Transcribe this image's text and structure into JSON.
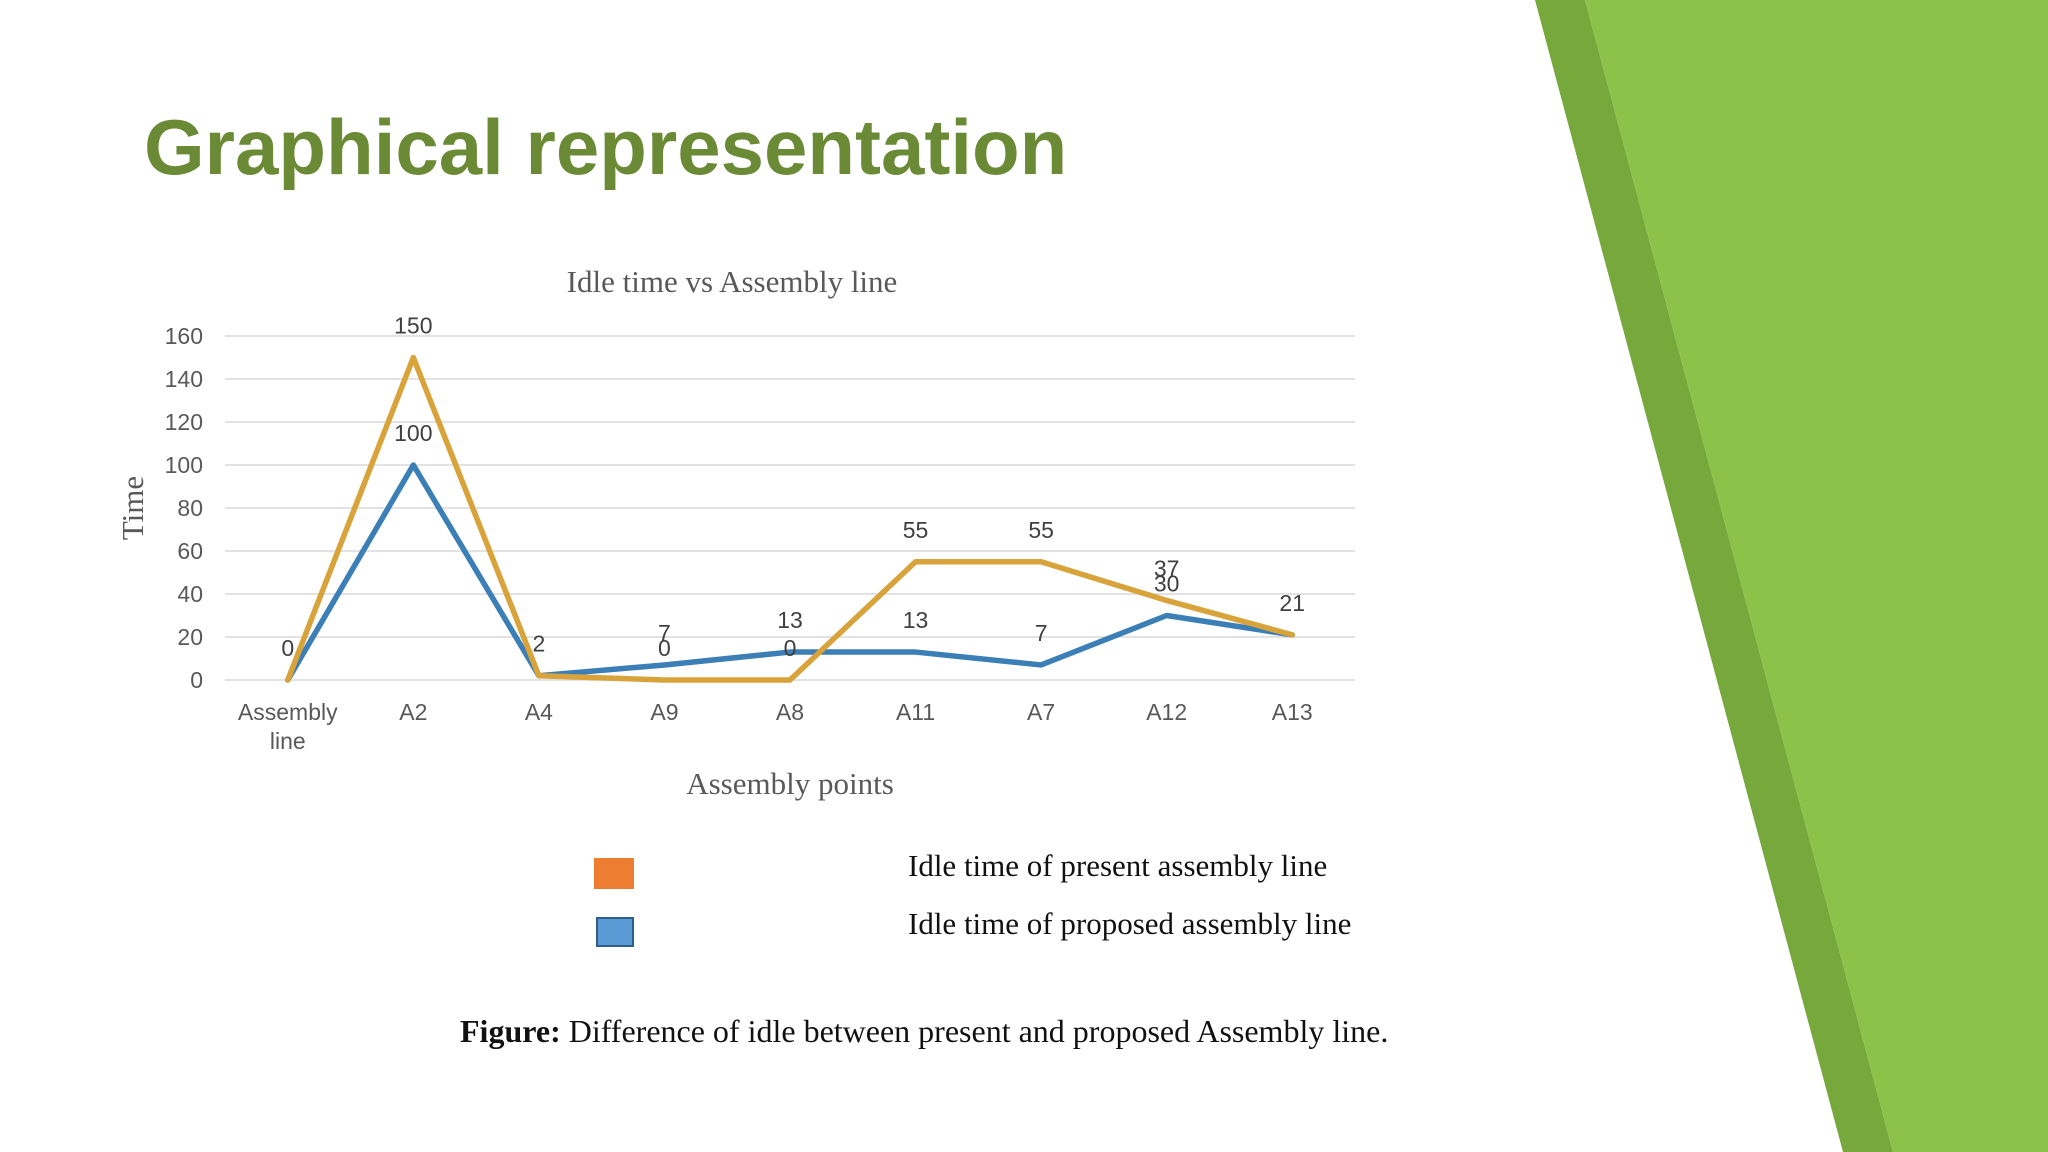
{
  "slide": {
    "title": "Graphical representation",
    "legend": [
      {
        "label": "Idle time of present assembly line",
        "color": "#ed7d31"
      },
      {
        "label": "Idle time of proposed assembly line",
        "color": "#5b9bd5"
      }
    ],
    "caption_bold": "Figure:",
    "caption_text": " Difference of idle between present and proposed Assembly line.",
    "accent_colors": {
      "title": "#6b8a35",
      "green_light": "#8bc34a",
      "green_dark": "#76a83c"
    }
  },
  "chart_data": {
    "type": "line",
    "title": "Idle time vs Assembly line",
    "xlabel": "Assembly points",
    "ylabel": "Time",
    "categories": [
      "Assembly line",
      "A2",
      "A4",
      "A9",
      "A8",
      "A11",
      "A7",
      "A12",
      "A13"
    ],
    "yticks": [
      0,
      20,
      40,
      60,
      80,
      100,
      120,
      140,
      160
    ],
    "ylim": [
      0,
      160
    ],
    "grid": true,
    "series": [
      {
        "name": "Idle time of present assembly line",
        "color": "#d8a33a",
        "values": [
          0,
          150,
          2,
          0,
          0,
          55,
          55,
          37,
          21
        ]
      },
      {
        "name": "Idle time of proposed assembly line",
        "color": "#3b7fb6",
        "values": [
          0,
          100,
          2,
          7,
          13,
          13,
          7,
          30,
          21
        ]
      }
    ],
    "data_labels": [
      "0",
      "150",
      "100",
      "2",
      "7",
      "0",
      "13",
      "0",
      "55",
      "13",
      "55",
      "7",
      "37",
      "30",
      "21"
    ]
  }
}
